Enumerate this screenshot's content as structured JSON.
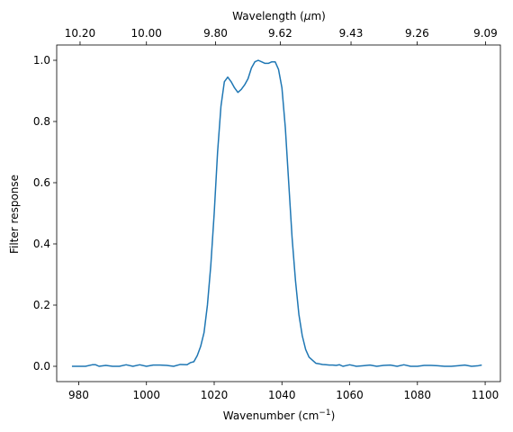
{
  "chart_data": {
    "type": "line",
    "xlabel": "Wavenumber (cm",
    "xlabel_sup": "−1",
    "xlabel_end": ")",
    "ylabel": "Filter response",
    "top_xlabel": "Wavelength (",
    "top_xlabel_mu": "μ",
    "top_xlabel_end": "m)",
    "xlim": [
      973.5,
      1104.5
    ],
    "ylim": [
      -0.05,
      1.05
    ],
    "x_ticks": [
      980,
      1000,
      1020,
      1040,
      1060,
      1080,
      1100
    ],
    "y_ticks": [
      0.0,
      0.2,
      0.4,
      0.6,
      0.8,
      1.0
    ],
    "y_tick_labels": [
      "0.0",
      "0.2",
      "0.4",
      "0.6",
      "0.8",
      "1.0"
    ],
    "top_ticks": [
      {
        "wavenumber": 980.4,
        "label": "10.20"
      },
      {
        "wavenumber": 1000.0,
        "label": "10.00"
      },
      {
        "wavenumber": 1020.4,
        "label": "9.80"
      },
      {
        "wavenumber": 1039.5,
        "label": "9.62"
      },
      {
        "wavenumber": 1060.4,
        "label": "9.43"
      },
      {
        "wavenumber": 1079.9,
        "label": "9.26"
      },
      {
        "wavenumber": 1100.1,
        "label": "9.09"
      }
    ],
    "line_color": "#1f77b4",
    "grid": false,
    "series": [
      {
        "x": [
          978,
          980,
          982,
          984,
          985,
          986,
          988,
          990,
          992,
          994,
          996,
          998,
          1000,
          1002,
          1004,
          1006,
          1008,
          1010,
          1012,
          1013,
          1014,
          1015,
          1016,
          1017,
          1018,
          1019,
          1020,
          1021,
          1022,
          1023,
          1024,
          1025,
          1026,
          1027,
          1028,
          1029,
          1030,
          1031,
          1032,
          1033,
          1034,
          1035,
          1036,
          1037,
          1038,
          1039,
          1040,
          1041,
          1042,
          1043,
          1044,
          1045,
          1046,
          1047,
          1048,
          1049,
          1050,
          1051,
          1052,
          1053,
          1054,
          1055,
          1056,
          1057,
          1058,
          1060,
          1062,
          1064,
          1066,
          1068,
          1070,
          1072,
          1074,
          1076,
          1078,
          1080,
          1082,
          1084,
          1086,
          1088,
          1090,
          1092,
          1094,
          1096,
          1098,
          1099
        ],
        "y": [
          0.0,
          0.0,
          0.0,
          0.005,
          0.005,
          0.0,
          0.003,
          0.0,
          0.0,
          0.005,
          0.0,
          0.005,
          0.0,
          0.004,
          0.004,
          0.003,
          0.0,
          0.006,
          0.005,
          0.012,
          0.015,
          0.035,
          0.065,
          0.11,
          0.2,
          0.33,
          0.5,
          0.7,
          0.85,
          0.93,
          0.945,
          0.93,
          0.91,
          0.895,
          0.905,
          0.92,
          0.94,
          0.975,
          0.995,
          1.0,
          0.995,
          0.99,
          0.99,
          0.995,
          0.995,
          0.97,
          0.91,
          0.78,
          0.6,
          0.42,
          0.28,
          0.17,
          0.1,
          0.055,
          0.03,
          0.02,
          0.01,
          0.008,
          0.006,
          0.005,
          0.004,
          0.004,
          0.003,
          0.005,
          0.0,
          0.005,
          0.0,
          0.002,
          0.004,
          0.0,
          0.003,
          0.004,
          0.0,
          0.005,
          0.0,
          0.0,
          0.003,
          0.003,
          0.002,
          0.0,
          0.0,
          0.002,
          0.004,
          0.0,
          0.002,
          0.004
        ]
      }
    ]
  }
}
